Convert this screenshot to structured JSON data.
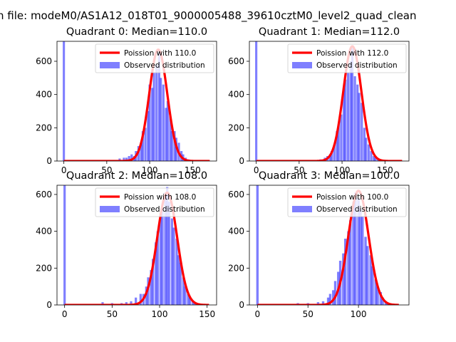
{
  "suptitle": "n file: modeM0/AS1A12_018T01_9000005488_39610cztM0_level2_quad_clean",
  "colors": {
    "hist": "#0000ff",
    "hist_alpha": 0.5,
    "curve": "#ff0000"
  },
  "chart_data": [
    {
      "type": "bar+line",
      "title": "Quadrant 0: Median=110.0",
      "xlim": [
        -8,
        178
      ],
      "ylim": [
        0,
        720
      ],
      "xticks": [
        0,
        50,
        100,
        150
      ],
      "yticks": [
        0,
        200,
        400,
        600
      ],
      "grid": false,
      "legend_position": "upper-right",
      "legend": [
        "Poission with 110.0",
        "Observed distribution"
      ],
      "bin_width": 2.6,
      "histogram": {
        "name": "Observed distribution",
        "x": [
          0,
          65,
          70,
          73,
          76,
          79,
          82,
          84,
          87,
          90,
          92,
          95,
          98,
          100,
          103,
          105,
          108,
          111,
          113,
          116,
          119,
          121,
          124,
          126,
          129,
          131,
          134,
          137,
          139,
          142,
          145,
          147,
          150
        ],
        "values": [
          720,
          15,
          20,
          20,
          30,
          40,
          30,
          60,
          90,
          110,
          180,
          200,
          300,
          460,
          440,
          530,
          580,
          650,
          500,
          460,
          320,
          360,
          270,
          180,
          180,
          140,
          110,
          60,
          40,
          20,
          10,
          5,
          2
        ]
      },
      "curve": {
        "name": "Poission with 110.0",
        "mu": 110,
        "peak": 670,
        "x": [
          0,
          170
        ]
      }
    },
    {
      "type": "bar+line",
      "title": "Quadrant 1: Median=112.0",
      "xlim": [
        -8,
        178
      ],
      "ylim": [
        0,
        720
      ],
      "xticks": [
        0,
        50,
        100,
        150
      ],
      "yticks": [
        0,
        200,
        400,
        600
      ],
      "grid": false,
      "legend_position": "upper-right",
      "legend": [
        "Poission with 112.0",
        "Observed distribution"
      ],
      "bin_width": 2.6,
      "histogram": {
        "name": "Observed distribution",
        "x": [
          0,
          60,
          70,
          75,
          80,
          83,
          86,
          88,
          91,
          94,
          96,
          99,
          102,
          104,
          107,
          110,
          112,
          115,
          118,
          120,
          123,
          126,
          128,
          131,
          134,
          137,
          139,
          142,
          145,
          148
        ],
        "values": [
          720,
          5,
          5,
          10,
          20,
          30,
          40,
          60,
          100,
          180,
          220,
          280,
          440,
          490,
          530,
          600,
          680,
          510,
          460,
          410,
          350,
          200,
          140,
          100,
          60,
          30,
          20,
          10,
          5,
          2
        ]
      },
      "curve": {
        "name": "Poission with 112.0",
        "mu": 112,
        "peak": 690,
        "x": [
          0,
          170
        ]
      }
    },
    {
      "type": "bar+line",
      "title": "Quadrant 2: Median=108.0",
      "xlim": [
        -8,
        160
      ],
      "ylim": [
        0,
        650
      ],
      "xticks": [
        0,
        50,
        100,
        150
      ],
      "yticks": [
        0,
        200,
        400,
        600
      ],
      "grid": false,
      "legend_position": "upper-right",
      "legend": [
        "Poission with 108.0",
        "Observed distribution"
      ],
      "bin_width": 2.4,
      "histogram": {
        "name": "Observed distribution",
        "x": [
          0,
          40,
          50,
          60,
          65,
          70,
          75,
          80,
          83,
          86,
          88,
          91,
          93,
          96,
          98,
          101,
          103,
          106,
          108,
          110,
          113,
          115,
          118,
          120,
          122,
          125,
          127,
          130,
          132,
          135,
          137,
          140,
          142
        ],
        "values": [
          650,
          15,
          10,
          10,
          15,
          20,
          40,
          60,
          60,
          100,
          150,
          190,
          250,
          340,
          400,
          500,
          530,
          610,
          640,
          560,
          470,
          420,
          360,
          270,
          230,
          150,
          100,
          60,
          40,
          20,
          10,
          5,
          2
        ]
      },
      "curve": {
        "name": "Poission with 108.0",
        "mu": 108,
        "peak": 610,
        "x": [
          0,
          152
        ]
      }
    },
    {
      "type": "bar+line",
      "title": "Quadrant 3: Median=100.0",
      "xlim": [
        -8,
        150
      ],
      "ylim": [
        0,
        650
      ],
      "xticks": [
        0,
        50,
        100
      ],
      "yticks": [
        0,
        200,
        400,
        600
      ],
      "grid": false,
      "legend_position": "upper-right",
      "legend": [
        "Poission with 100.0",
        "Observed distribution"
      ],
      "bin_width": 2.4,
      "histogram": {
        "name": "Observed distribution",
        "x": [
          0,
          40,
          50,
          60,
          65,
          70,
          72,
          75,
          77,
          80,
          82,
          85,
          87,
          90,
          92,
          95,
          97,
          100,
          102,
          104,
          107,
          109,
          112,
          114,
          117,
          119,
          122,
          124,
          127,
          129,
          132,
          134
        ],
        "values": [
          650,
          10,
          10,
          15,
          20,
          40,
          60,
          80,
          130,
          180,
          240,
          280,
          360,
          400,
          460,
          560,
          610,
          580,
          520,
          480,
          370,
          320,
          270,
          210,
          140,
          100,
          70,
          40,
          20,
          10,
          5,
          2
        ]
      },
      "curve": {
        "name": "Poission with 100.0",
        "mu": 100,
        "peak": 620,
        "x": [
          0,
          140
        ]
      }
    }
  ]
}
